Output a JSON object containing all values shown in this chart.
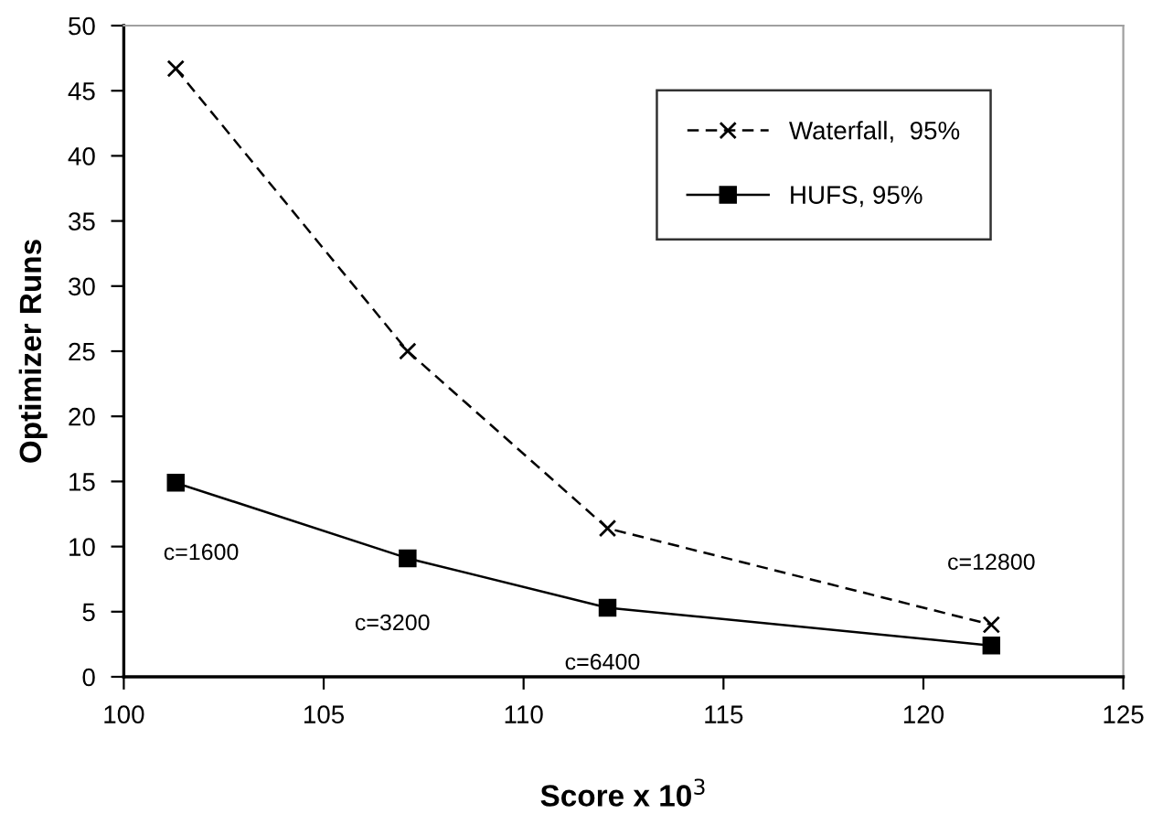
{
  "chart_data": {
    "type": "line",
    "xlabel": "Score x 10$^{3}$",
    "ylabel": "Optimizer Runs",
    "xlim": [
      100,
      125
    ],
    "xticks": [
      100,
      105,
      110,
      115,
      120,
      125
    ],
    "ylim": [
      0,
      50
    ],
    "yticks": [
      0,
      5,
      10,
      15,
      20,
      25,
      30,
      35,
      40,
      45,
      50
    ],
    "grid": false,
    "legend": "top right",
    "series": [
      {
        "name": "Waterfall,  95%",
        "color": "#000000",
        "x": [
          101.3,
          107.1,
          112.1,
          121.7
        ],
        "values": [
          46.7,
          25.0,
          11.4,
          4.0
        ],
        "marker": "cross",
        "line_style": "dashed"
      },
      {
        "name": "HUFS, 95%",
        "color": "#000000",
        "x": [
          101.3,
          107.1,
          112.1,
          121.7
        ],
        "values": [
          14.9,
          9.1,
          5.3,
          2.4
        ],
        "marker": "square",
        "line_style": "solid"
      }
    ],
    "annotations": [
      {
        "text": "c=1600",
        "x": 101.3,
        "y": 14.9
      },
      {
        "text": "c=3200",
        "x": 107.1,
        "y": 9.1
      },
      {
        "text": "c=6400",
        "x": 112.1,
        "y": 5.3
      },
      {
        "text": "c=12800",
        "x": 121.7,
        "y": 4.0
      }
    ]
  }
}
